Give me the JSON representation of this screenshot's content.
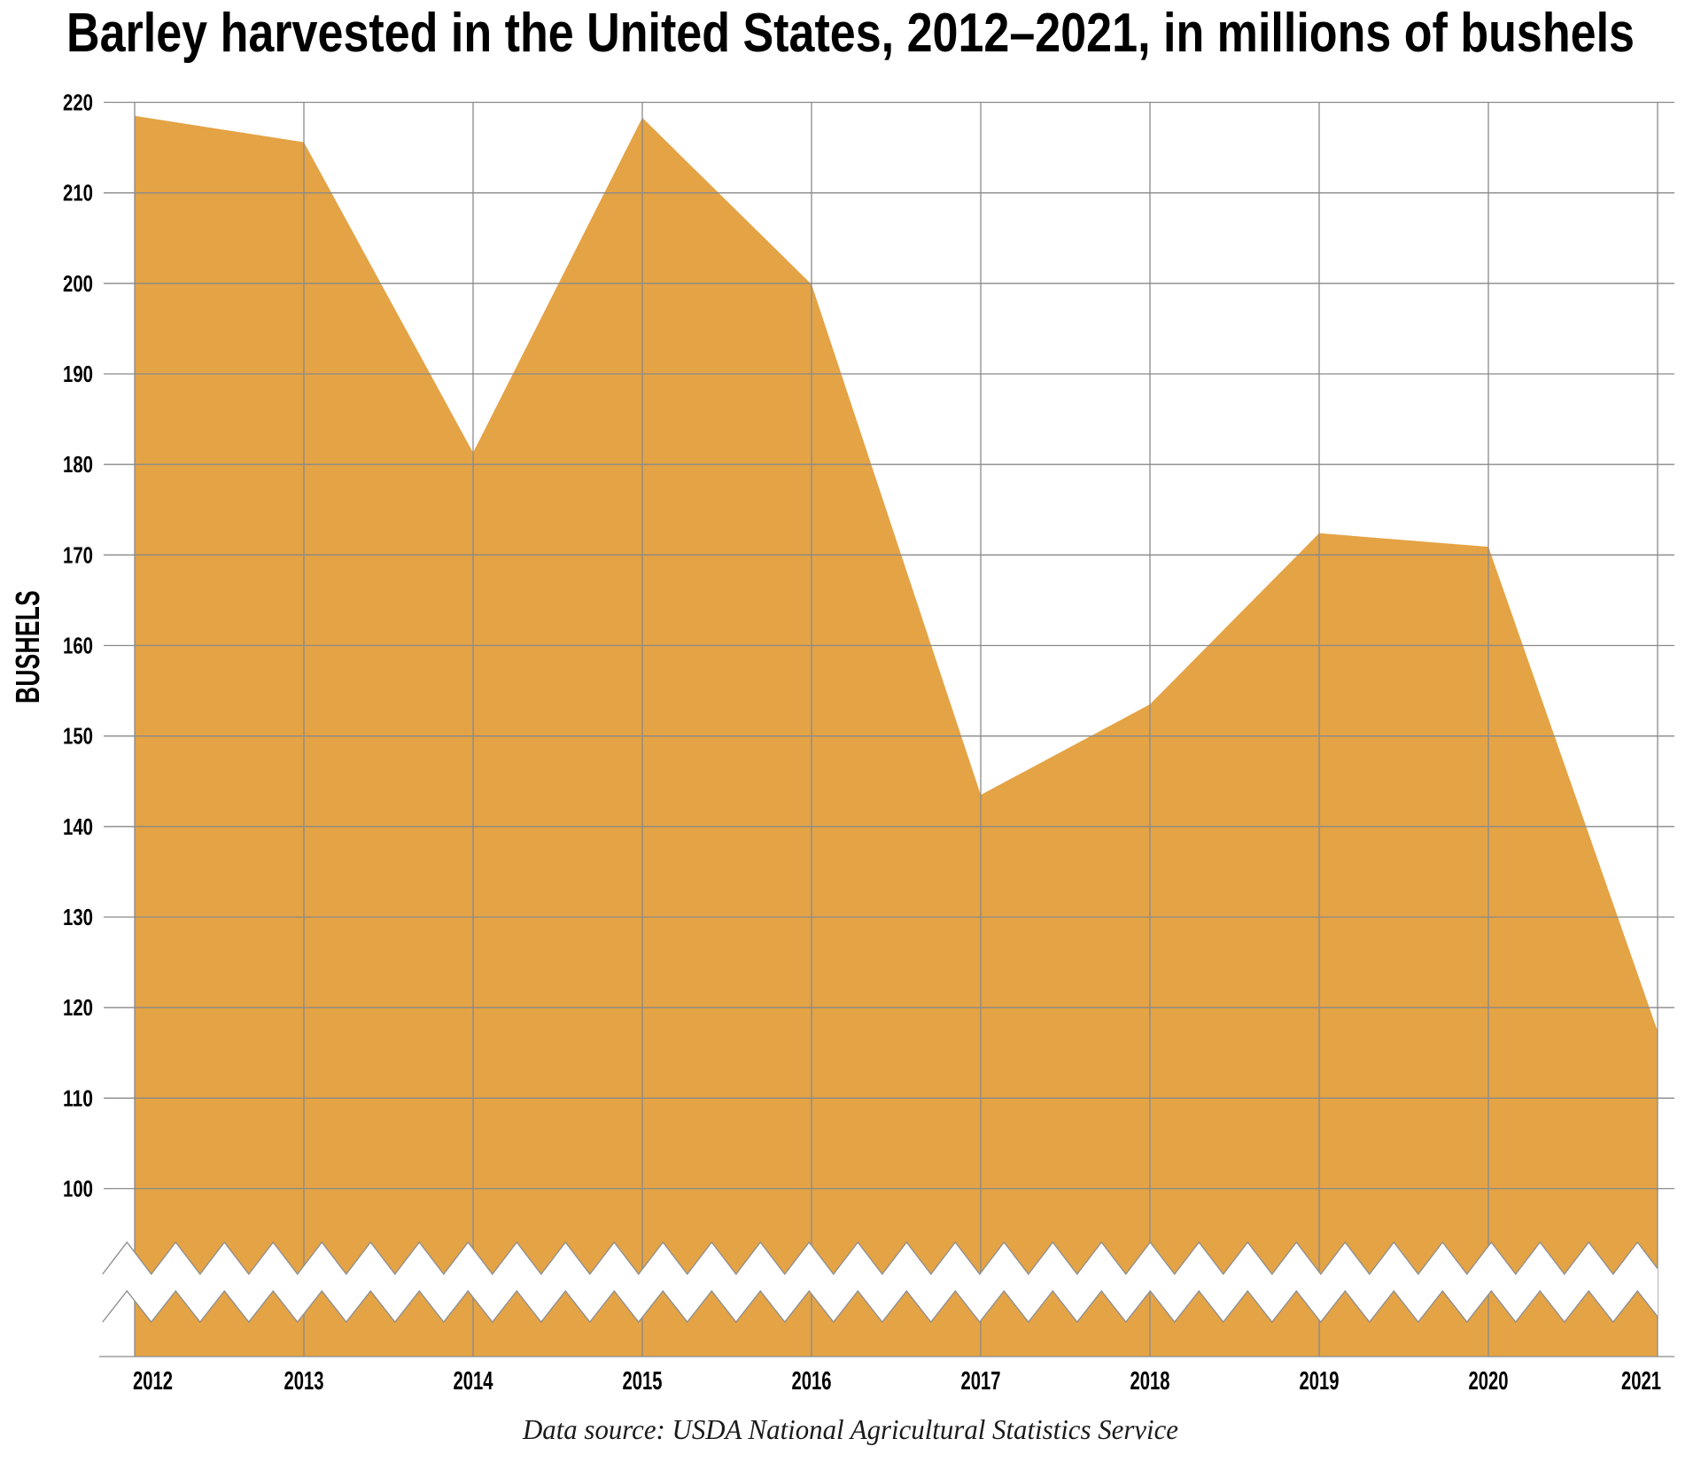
{
  "title": "Barley harvested in the United States, 2012–2021, in millions of bushels",
  "source_note": "Data source: USDA National Agricultural Statistics Service",
  "chart_data": {
    "type": "area",
    "title": "Barley harvested in the United States, 2012–2021, in millions of bushels",
    "ylabel": "BUSHELS",
    "xlabel": "",
    "units": "millions of bushels",
    "categories": [
      "2012",
      "2013",
      "2014",
      "2015",
      "2016",
      "2017",
      "2018",
      "2019",
      "2020",
      "2021"
    ],
    "values": [
      218.5,
      215.6,
      181.3,
      218.3,
      199.9,
      143.5,
      153.5,
      172.4,
      170.9,
      117.4
    ],
    "series_name": "Barley harvested",
    "y_tick_labels": [
      "220",
      "210",
      "200",
      "190",
      "180",
      "170",
      "160",
      "150",
      "140",
      "130",
      "120",
      "110",
      "100"
    ],
    "y_ticks": [
      220,
      210,
      200,
      190,
      180,
      170,
      160,
      150,
      140,
      130,
      120,
      110,
      100
    ],
    "ylim_displayed": [
      100,
      220
    ],
    "axis_break": true,
    "grid": true,
    "legend_position": "none",
    "source": "Data source: USDA National Agricultural Statistics Service",
    "colors": {
      "area_fill": "#E4A344",
      "gridline": "#8A8A8A",
      "break_stroke": "#909090",
      "text": "#000000",
      "background": "#FFFFFF"
    }
  }
}
